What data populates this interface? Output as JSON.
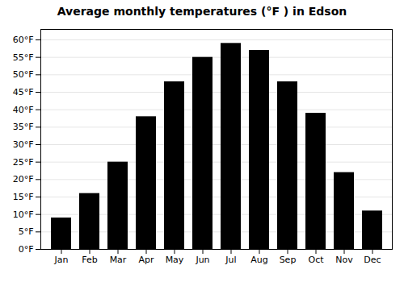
{
  "chart_data": {
    "type": "bar",
    "title": "Average monthly temperatures (°F ) in Edson",
    "categories": [
      "Jan",
      "Feb",
      "Mar",
      "Apr",
      "May",
      "Jun",
      "Jul",
      "Aug",
      "Sep",
      "Oct",
      "Nov",
      "Dec"
    ],
    "values": [
      9,
      16,
      25,
      38,
      48,
      55,
      59,
      57,
      48,
      39,
      22,
      11
    ],
    "ylim": [
      0,
      63
    ],
    "yticks": [
      {
        "value": 0,
        "label": "0°F"
      },
      {
        "value": 5,
        "label": "5°F"
      },
      {
        "value": 10,
        "label": "10°F"
      },
      {
        "value": 15,
        "label": "15°F"
      },
      {
        "value": 20,
        "label": "20°F"
      },
      {
        "value": 25,
        "label": "25°F"
      },
      {
        "value": 30,
        "label": "30°F"
      },
      {
        "value": 35,
        "label": "35°F"
      },
      {
        "value": 40,
        "label": "40°F"
      },
      {
        "value": 45,
        "label": "45°F"
      },
      {
        "value": 50,
        "label": "50°F"
      },
      {
        "value": 55,
        "label": "55°F"
      },
      {
        "value": 60,
        "label": "60°F"
      }
    ],
    "grid": true
  }
}
